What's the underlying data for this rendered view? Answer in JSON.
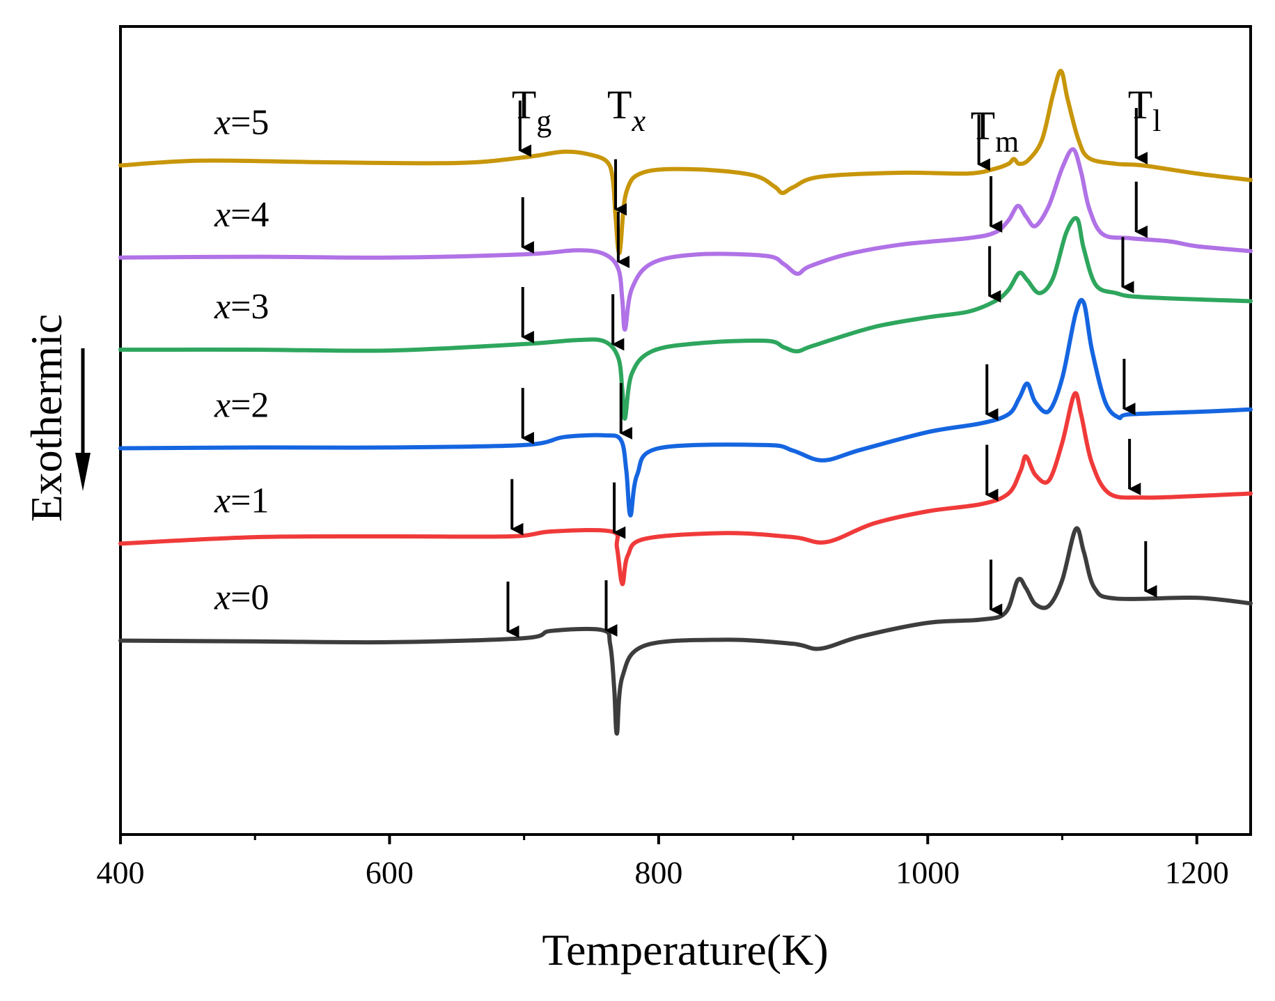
{
  "chart_data": {
    "type": "line",
    "title": "",
    "xlabel": "Temperature(K)",
    "ylabel": "Exothermic",
    "xlim": [
      400,
      1240
    ],
    "ylim": [
      0,
      100
    ],
    "xticks": [
      400,
      600,
      800,
      1000,
      1200
    ],
    "grid": false,
    "legend": "none",
    "series_label_prefix": "x",
    "annotations": [
      {
        "name": "Tg",
        "main": "T",
        "sub": "g",
        "x": 697
      },
      {
        "name": "Tx",
        "main": "T",
        "sub": "x",
        "x": 768
      },
      {
        "name": "Tm",
        "main": "T",
        "sub": "m",
        "x": 1038
      },
      {
        "name": "Tl",
        "main": "T",
        "sub": "l",
        "x": 1155
      }
    ],
    "series": [
      {
        "name": "x=5",
        "label_value": "=5",
        "color": "#C8960A",
        "points": [
          [
            400,
            82.8
          ],
          [
            460,
            83.4
          ],
          [
            550,
            83.2
          ],
          [
            650,
            83.1
          ],
          [
            700,
            83.8
          ],
          [
            730,
            84.5
          ],
          [
            750,
            84.1
          ],
          [
            762,
            83.2
          ],
          [
            766,
            81.0
          ],
          [
            768,
            76.5
          ],
          [
            771,
            72.0
          ],
          [
            776,
            79.5
          ],
          [
            790,
            82.0
          ],
          [
            830,
            82.3
          ],
          [
            870,
            81.6
          ],
          [
            886,
            80.2
          ],
          [
            892,
            79.4
          ],
          [
            900,
            80.1
          ],
          [
            920,
            81.4
          ],
          [
            980,
            81.9
          ],
          [
            1030,
            81.8
          ],
          [
            1050,
            82.4
          ],
          [
            1060,
            83.0
          ],
          [
            1064,
            83.6
          ],
          [
            1068,
            83.0
          ],
          [
            1075,
            83.5
          ],
          [
            1085,
            86.0
          ],
          [
            1093,
            91.5
          ],
          [
            1099,
            94.5
          ],
          [
            1104,
            91.0
          ],
          [
            1112,
            86.0
          ],
          [
            1120,
            83.7
          ],
          [
            1140,
            83.0
          ],
          [
            1160,
            82.8
          ],
          [
            1200,
            81.8
          ],
          [
            1240,
            81.0
          ]
        ]
      },
      {
        "name": "x=4",
        "label_value": "=4",
        "color": "#B072E6",
        "points": [
          [
            400,
            71.4
          ],
          [
            500,
            71.5
          ],
          [
            600,
            71.4
          ],
          [
            700,
            71.8
          ],
          [
            740,
            72.3
          ],
          [
            760,
            71.8
          ],
          [
            770,
            70.0
          ],
          [
            773,
            66.2
          ],
          [
            775,
            62.5
          ],
          [
            780,
            67.5
          ],
          [
            795,
            70.7
          ],
          [
            830,
            71.8
          ],
          [
            880,
            71.6
          ],
          [
            893,
            70.6
          ],
          [
            903,
            69.4
          ],
          [
            912,
            70.3
          ],
          [
            940,
            71.8
          ],
          [
            980,
            73.0
          ],
          [
            1030,
            73.8
          ],
          [
            1050,
            74.5
          ],
          [
            1060,
            76.0
          ],
          [
            1067,
            77.8
          ],
          [
            1073,
            76.5
          ],
          [
            1080,
            75.3
          ],
          [
            1090,
            77.8
          ],
          [
            1100,
            82.5
          ],
          [
            1108,
            84.8
          ],
          [
            1114,
            82.0
          ],
          [
            1120,
            77.5
          ],
          [
            1130,
            74.3
          ],
          [
            1150,
            73.8
          ],
          [
            1180,
            73.4
          ],
          [
            1200,
            72.8
          ],
          [
            1240,
            72.2
          ]
        ]
      },
      {
        "name": "x=3",
        "label_value": "=3",
        "color": "#2EA65E",
        "points": [
          [
            400,
            60.0
          ],
          [
            500,
            60.0
          ],
          [
            600,
            59.9
          ],
          [
            700,
            60.7
          ],
          [
            740,
            61.2
          ],
          [
            760,
            61.0
          ],
          [
            770,
            59.0
          ],
          [
            773,
            55.0
          ],
          [
            775,
            51.5
          ],
          [
            780,
            57.0
          ],
          [
            795,
            59.8
          ],
          [
            830,
            60.8
          ],
          [
            880,
            61.1
          ],
          [
            893,
            60.3
          ],
          [
            903,
            59.8
          ],
          [
            915,
            60.5
          ],
          [
            960,
            62.8
          ],
          [
            1000,
            64.0
          ],
          [
            1030,
            64.7
          ],
          [
            1050,
            66.0
          ],
          [
            1060,
            67.4
          ],
          [
            1068,
            69.5
          ],
          [
            1074,
            68.6
          ],
          [
            1083,
            67.0
          ],
          [
            1093,
            68.8
          ],
          [
            1103,
            74.5
          ],
          [
            1111,
            76.2
          ],
          [
            1116,
            72.5
          ],
          [
            1125,
            68.0
          ],
          [
            1140,
            67.0
          ],
          [
            1160,
            66.5
          ],
          [
            1240,
            66.0
          ]
        ]
      },
      {
        "name": "x=2",
        "label_value": "=2",
        "color": "#1565E0",
        "points": [
          [
            400,
            47.8
          ],
          [
            500,
            47.9
          ],
          [
            600,
            47.9
          ],
          [
            700,
            48.2
          ],
          [
            730,
            49.2
          ],
          [
            760,
            49.4
          ],
          [
            772,
            48.8
          ],
          [
            776,
            45.0
          ],
          [
            779,
            39.5
          ],
          [
            784,
            44.5
          ],
          [
            800,
            47.8
          ],
          [
            880,
            48.2
          ],
          [
            900,
            47.5
          ],
          [
            922,
            46.3
          ],
          [
            950,
            47.6
          ],
          [
            1000,
            49.8
          ],
          [
            1040,
            50.9
          ],
          [
            1060,
            52.0
          ],
          [
            1068,
            54.0
          ],
          [
            1074,
            55.8
          ],
          [
            1080,
            53.5
          ],
          [
            1090,
            52.4
          ],
          [
            1100,
            56.5
          ],
          [
            1110,
            64.5
          ],
          [
            1116,
            65.8
          ],
          [
            1122,
            60.0
          ],
          [
            1132,
            53.5
          ],
          [
            1142,
            51.6
          ],
          [
            1150,
            52.0
          ],
          [
            1200,
            52.3
          ],
          [
            1240,
            52.6
          ]
        ]
      },
      {
        "name": "x=1",
        "label_value": "=1",
        "color": "#F03A3A",
        "points": [
          [
            400,
            36.0
          ],
          [
            500,
            36.8
          ],
          [
            600,
            36.9
          ],
          [
            690,
            36.9
          ],
          [
            720,
            37.5
          ],
          [
            765,
            37.5
          ],
          [
            769,
            35.5
          ],
          [
            773,
            31.0
          ],
          [
            777,
            34.5
          ],
          [
            790,
            36.6
          ],
          [
            850,
            37.3
          ],
          [
            900,
            36.8
          ],
          [
            925,
            36.2
          ],
          [
            960,
            38.5
          ],
          [
            1000,
            40.0
          ],
          [
            1040,
            40.9
          ],
          [
            1060,
            42.2
          ],
          [
            1069,
            45.0
          ],
          [
            1073,
            46.8
          ],
          [
            1080,
            44.5
          ],
          [
            1090,
            43.8
          ],
          [
            1100,
            48.5
          ],
          [
            1109,
            54.5
          ],
          [
            1114,
            52.0
          ],
          [
            1122,
            46.0
          ],
          [
            1135,
            42.2
          ],
          [
            1160,
            41.7
          ],
          [
            1200,
            41.9
          ],
          [
            1240,
            42.2
          ]
        ]
      },
      {
        "name": "x=0",
        "label_value": "=0",
        "color": "#3D3D3D",
        "points": [
          [
            400,
            24.0
          ],
          [
            500,
            23.9
          ],
          [
            600,
            23.8
          ],
          [
            700,
            24.3
          ],
          [
            720,
            25.2
          ],
          [
            758,
            25.3
          ],
          [
            764,
            23.5
          ],
          [
            767,
            18.0
          ],
          [
            769,
            12.5
          ],
          [
            773,
            19.5
          ],
          [
            790,
            23.4
          ],
          [
            850,
            24.1
          ],
          [
            900,
            23.6
          ],
          [
            920,
            23.0
          ],
          [
            950,
            24.5
          ],
          [
            1000,
            26.2
          ],
          [
            1040,
            26.6
          ],
          [
            1058,
            27.5
          ],
          [
            1067,
            31.5
          ],
          [
            1073,
            30.5
          ],
          [
            1080,
            28.5
          ],
          [
            1090,
            28.3
          ],
          [
            1100,
            31.5
          ],
          [
            1110,
            37.8
          ],
          [
            1116,
            35.0
          ],
          [
            1124,
            30.5
          ],
          [
            1140,
            29.2
          ],
          [
            1200,
            29.3
          ],
          [
            1240,
            28.6
          ]
        ]
      }
    ],
    "marker_arrows": [
      {
        "series": "x=5",
        "x": [
          697,
          768,
          1038,
          1155
        ]
      },
      {
        "series": "x=4",
        "x": [
          699,
          770,
          1047,
          1155
        ]
      },
      {
        "series": "x=3",
        "x": [
          699,
          766,
          1046,
          1145
        ]
      },
      {
        "series": "x=2",
        "x": [
          699,
          772,
          1044,
          1146
        ]
      },
      {
        "series": "x=1",
        "x": [
          691,
          767,
          1044,
          1150
        ]
      },
      {
        "series": "x=0",
        "x": [
          688,
          761,
          1047,
          1162
        ]
      }
    ]
  }
}
